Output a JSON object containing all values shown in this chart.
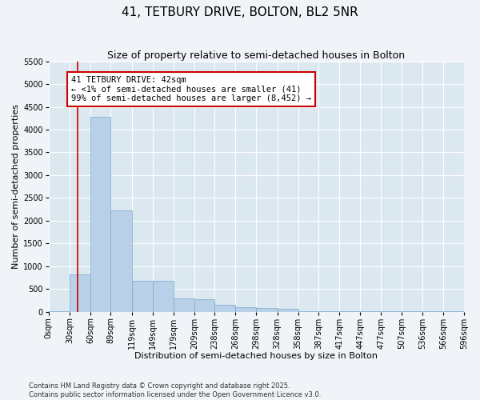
{
  "title": "41, TETBURY DRIVE, BOLTON, BL2 5NR",
  "subtitle": "Size of property relative to semi-detached houses in Bolton",
  "xlabel": "Distribution of semi-detached houses by size in Bolton",
  "ylabel": "Number of semi-detached properties",
  "bar_color": "#b8d0e8",
  "bar_edge_color": "#7aaace",
  "background_color": "#dce8f0",
  "grid_color": "#ffffff",
  "annotation_box_color": "#cc0000",
  "property_line_color": "#cc0000",
  "property_value": 42,
  "annotation_title": "41 TETBURY DRIVE: 42sqm",
  "annotation_line1": "← <1% of semi-detached houses are smaller (41)",
  "annotation_line2": "99% of semi-detached houses are larger (8,452) →",
  "footnote1": "Contains HM Land Registry data © Crown copyright and database right 2025.",
  "footnote2": "Contains public sector information licensed under the Open Government Licence v3.0.",
  "bin_labels": [
    "0sqm",
    "30sqm",
    "60sqm",
    "89sqm",
    "119sqm",
    "149sqm",
    "179sqm",
    "209sqm",
    "238sqm",
    "268sqm",
    "298sqm",
    "328sqm",
    "358sqm",
    "387sqm",
    "417sqm",
    "447sqm",
    "477sqm",
    "507sqm",
    "536sqm",
    "566sqm",
    "596sqm"
  ],
  "bin_edges": [
    0,
    30,
    60,
    89,
    119,
    149,
    179,
    209,
    238,
    268,
    298,
    328,
    358,
    387,
    417,
    447,
    477,
    507,
    536,
    566,
    596
  ],
  "counts": [
    3,
    820,
    4280,
    2230,
    680,
    670,
    290,
    275,
    145,
    100,
    75,
    70,
    2,
    2,
    2,
    2,
    2,
    2,
    2,
    2
  ],
  "ylim": [
    0,
    5500
  ],
  "yticks": [
    0,
    500,
    1000,
    1500,
    2000,
    2500,
    3000,
    3500,
    4000,
    4500,
    5000,
    5500
  ],
  "fig_width": 6.0,
  "fig_height": 5.0,
  "fig_dpi": 100,
  "fig_bg": "#f0f4f8",
  "title_fontsize": 11,
  "subtitle_fontsize": 9,
  "axis_label_fontsize": 8,
  "tick_fontsize": 7,
  "annotation_fontsize": 7.5,
  "footnote_fontsize": 6
}
